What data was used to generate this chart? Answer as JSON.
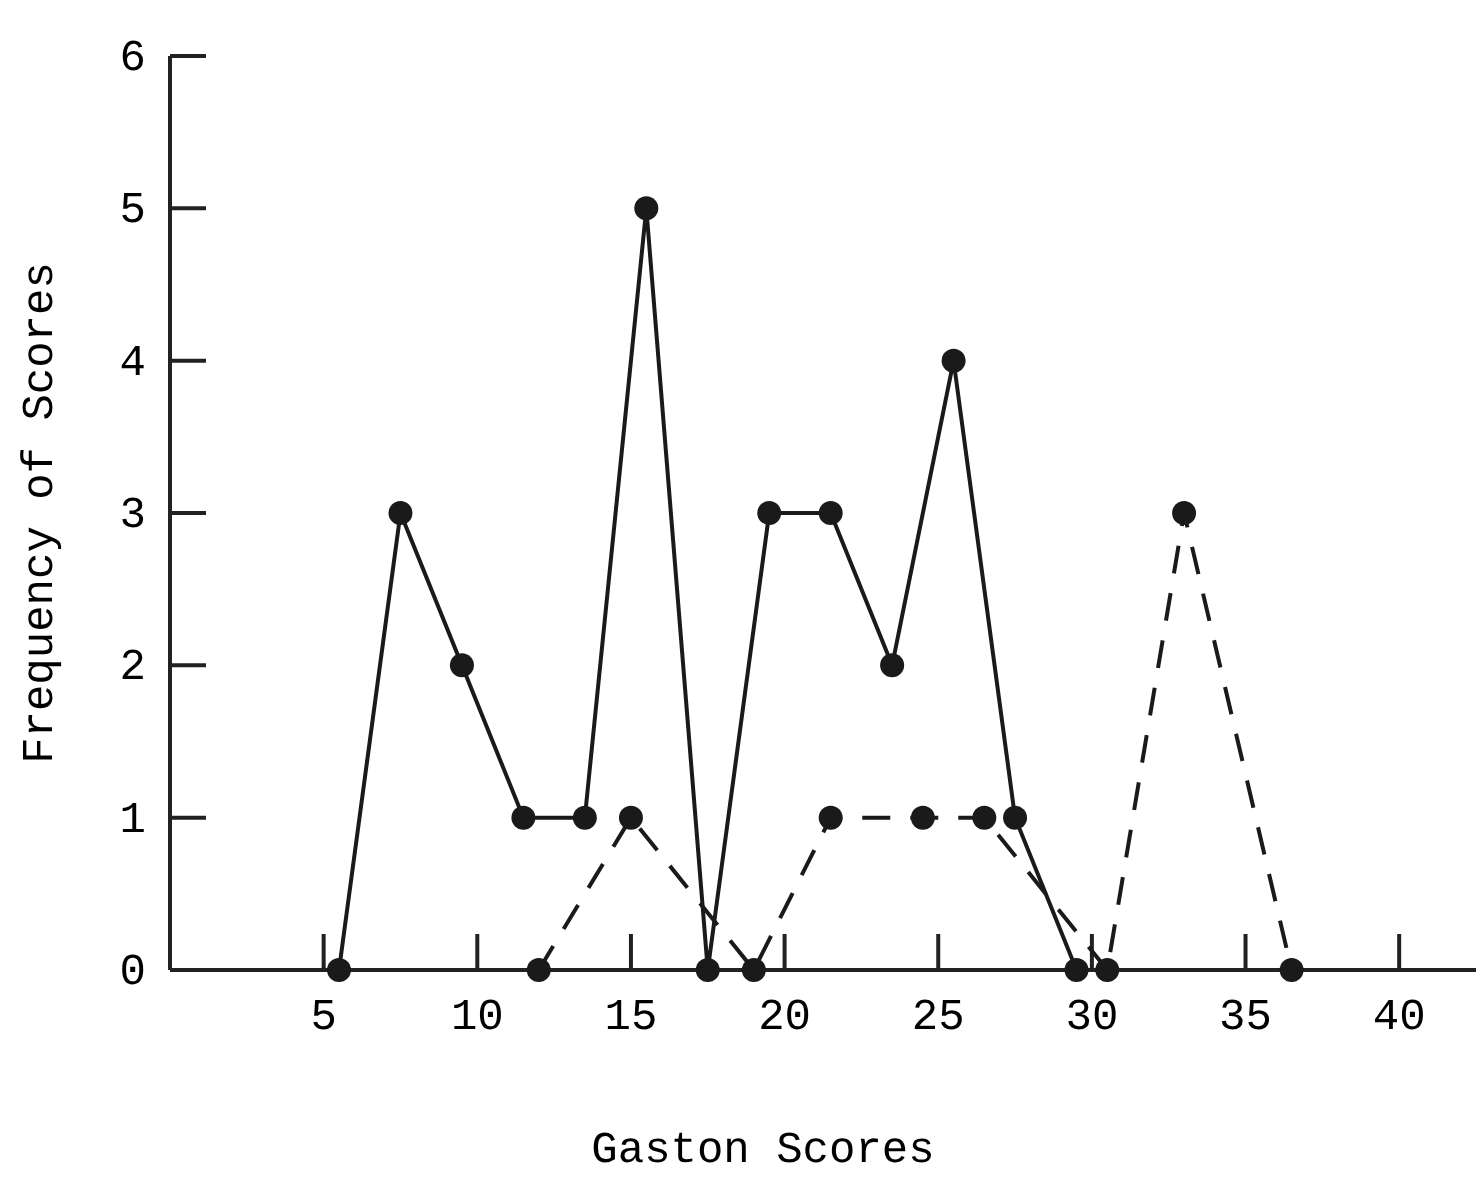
{
  "chart_data": {
    "type": "line",
    "xlabel": "Gaston Scores",
    "ylabel": "Frequency of Scores",
    "xlim": [
      0,
      42.5
    ],
    "xticks": [
      5,
      10,
      15,
      20,
      25,
      30,
      35,
      40
    ],
    "ylim": [
      0,
      6
    ],
    "yticks": [
      0,
      1,
      2,
      3,
      4,
      5,
      6
    ],
    "marker": "circle",
    "grid": false,
    "series": [
      {
        "color": "#1a1a1a",
        "line_style": "solid",
        "x": [
          5.5,
          7.5,
          9.5,
          11.5,
          13.5,
          15.5,
          17.5,
          19.5,
          21.5,
          23.5,
          25.5,
          27.5,
          29.5
        ],
        "values": [
          0,
          3,
          2,
          1,
          1,
          5,
          0,
          3,
          3,
          2,
          4,
          1,
          0
        ]
      },
      {
        "color": "#1a1a1a",
        "line_style": "dashed",
        "x": [
          12,
          15,
          19,
          21.5,
          24.5,
          26.5,
          30.5,
          33,
          36.5
        ],
        "values": [
          0,
          1,
          0,
          1,
          1,
          1,
          0,
          3,
          0
        ]
      }
    ]
  }
}
